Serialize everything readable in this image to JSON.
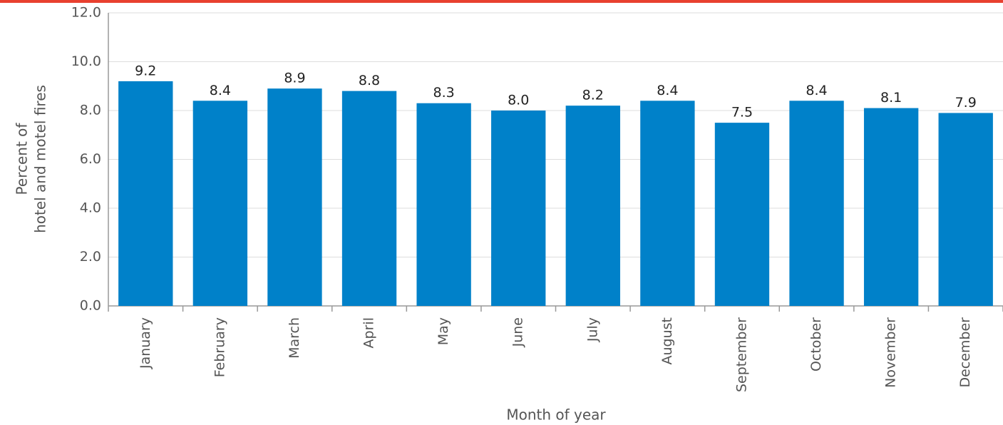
{
  "chart_data": {
    "type": "bar",
    "ylabel": [
      "Percent of",
      "hotel and motel fires"
    ],
    "xlabel": "Month of year",
    "categories": [
      "January",
      "February",
      "March",
      "April",
      "May",
      "June",
      "July",
      "August",
      "September",
      "October",
      "November",
      "December"
    ],
    "values": [
      9.2,
      8.4,
      8.9,
      8.8,
      8.3,
      8.0,
      8.2,
      8.4,
      7.5,
      8.4,
      8.1,
      7.9
    ],
    "value_labels": [
      "9.2",
      "8.4",
      "8.9",
      "8.8",
      "8.3",
      "8.0",
      "8.2",
      "8.4",
      "7.5",
      "8.4",
      "8.1",
      "7.9"
    ],
    "color": "#0081c9",
    "ylim": [
      0,
      12
    ],
    "yticks": [
      {
        "value": 0,
        "label": "0.0"
      },
      {
        "value": 2,
        "label": "2.0"
      },
      {
        "value": 4,
        "label": "4.0"
      },
      {
        "value": 6,
        "label": "6.0"
      },
      {
        "value": 8,
        "label": "8.0"
      },
      {
        "value": 10,
        "label": "10.0"
      },
      {
        "value": 12,
        "label": "12.0"
      }
    ],
    "grid": true
  }
}
